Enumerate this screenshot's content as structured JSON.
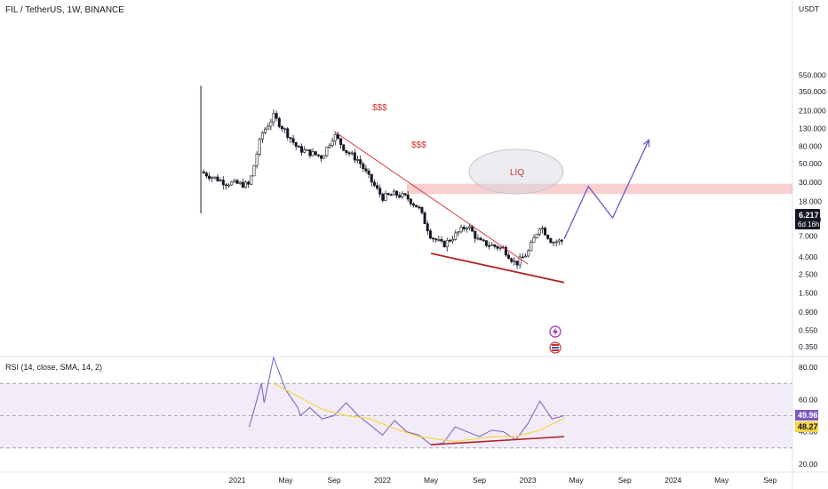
{
  "header": {
    "symbol_line": "FIL / TetherUS, 1W, BINANCE",
    "unit_label": "USDT"
  },
  "chart_data": [
    {
      "type": "candlestick",
      "title": "FIL / TetherUS, 1W, BINANCE",
      "scale": "log",
      "y_unit": "USDT",
      "y_ticks": [
        "550.000",
        "350.000",
        "210.000",
        "130.000",
        "80.000",
        "50.000",
        "30.000",
        "18.000",
        "11.000",
        "7.000",
        "4.000",
        "2.500",
        "1.500",
        "0.900",
        "0.550",
        "0.350"
      ],
      "x_ticks": [
        "2021",
        "May",
        "Sep",
        "2022",
        "May",
        "Sep",
        "2023",
        "May",
        "Sep",
        "2024",
        "May",
        "Sep"
      ],
      "grid": false,
      "approx_weekly_close_path": [
        {
          "x": "2020-10",
          "y": 40
        },
        {
          "x": "2020-12",
          "y": 30
        },
        {
          "x": "2021-02",
          "y": 28
        },
        {
          "x": "2021-03",
          "y": 110
        },
        {
          "x": "2021-04",
          "y": 180
        },
        {
          "x": "2021-05",
          "y": 120
        },
        {
          "x": "2021-06",
          "y": 75
        },
        {
          "x": "2021-08",
          "y": 60
        },
        {
          "x": "2021-09",
          "y": 110
        },
        {
          "x": "2021-10",
          "y": 70
        },
        {
          "x": "2021-11",
          "y": 55
        },
        {
          "x": "2021-12",
          "y": 32
        },
        {
          "x": "2022-01",
          "y": 20
        },
        {
          "x": "2022-02",
          "y": 22
        },
        {
          "x": "2022-03",
          "y": 20
        },
        {
          "x": "2022-04",
          "y": 15
        },
        {
          "x": "2022-05",
          "y": 7
        },
        {
          "x": "2022-06",
          "y": 5.5
        },
        {
          "x": "2022-08",
          "y": 9.5
        },
        {
          "x": "2022-09",
          "y": 6
        },
        {
          "x": "2022-11",
          "y": 5
        },
        {
          "x": "2022-12",
          "y": 3.3
        },
        {
          "x": "2023-01",
          "y": 4.5
        },
        {
          "x": "2023-02",
          "y": 9.5
        },
        {
          "x": "2023-03",
          "y": 6
        },
        {
          "x": "2023-04",
          "y": 6.217
        }
      ],
      "price_label": {
        "value": "6.217",
        "countdown": "6d 16h",
        "color": "#131722"
      },
      "projection_path": [
        {
          "x": "2023-04",
          "y": 6.5
        },
        {
          "x": "2023-06",
          "y": 27
        },
        {
          "x": "2023-08",
          "y": 11.5
        },
        {
          "x": "2023-11",
          "y": 95
        }
      ],
      "liquidity_zone": {
        "low": 22,
        "high": 29,
        "color": "#f4a8a8"
      },
      "annotations": [
        {
          "text": "$$$",
          "color": "#d32f2f"
        },
        {
          "text": "$$$",
          "color": "#d32f2f"
        },
        {
          "text": "LIQ",
          "color": "#d32f2f"
        }
      ],
      "trendlines": [
        {
          "name": "descending resistance",
          "from": {
            "x": "2021-09",
            "y": 120
          },
          "to": {
            "x": "2023-01",
            "y": 3.3
          },
          "color": "#d32f2f"
        },
        {
          "name": "lower trendline",
          "from": {
            "x": "2022-05",
            "y": 4.4
          },
          "to": {
            "x": "2023-04",
            "y": 2.0
          },
          "color": "#b22222"
        }
      ]
    },
    {
      "type": "line",
      "title": "RSI (14, close, SMA, 14, 2)",
      "y_ticks": [
        "80.00",
        "60.00",
        "40.00",
        "20.00"
      ],
      "ylim": [
        18,
        86
      ],
      "band": [
        30,
        70
      ],
      "band_color": "#ede7f6",
      "series": [
        {
          "name": "RSI",
          "color": "#7e57c2",
          "values": [
            {
              "x": "2021-02",
              "y": 43
            },
            {
              "x": "2021-03",
              "y": 70
            },
            {
              "x": "2021-03",
              "y": 58
            },
            {
              "x": "2021-04",
              "y": 86
            },
            {
              "x": "2021-05",
              "y": 66
            },
            {
              "x": "2021-06",
              "y": 55
            },
            {
              "x": "2021-06",
              "y": 50
            },
            {
              "x": "2021-07",
              "y": 55
            },
            {
              "x": "2021-08",
              "y": 48
            },
            {
              "x": "2021-09",
              "y": 50
            },
            {
              "x": "2021-10",
              "y": 58
            },
            {
              "x": "2021-11",
              "y": 50
            },
            {
              "x": "2021-12",
              "y": 44
            },
            {
              "x": "2022-01",
              "y": 38
            },
            {
              "x": "2022-02",
              "y": 47
            },
            {
              "x": "2022-03",
              "y": 40
            },
            {
              "x": "2022-04",
              "y": 38
            },
            {
              "x": "2022-05",
              "y": 32
            },
            {
              "x": "2022-06",
              "y": 33
            },
            {
              "x": "2022-07",
              "y": 43
            },
            {
              "x": "2022-08",
              "y": 40
            },
            {
              "x": "2022-09",
              "y": 37
            },
            {
              "x": "2022-10",
              "y": 41
            },
            {
              "x": "2022-11",
              "y": 40
            },
            {
              "x": "2022-12",
              "y": 35
            },
            {
              "x": "2023-01",
              "y": 45
            },
            {
              "x": "2023-02",
              "y": 59
            },
            {
              "x": "2023-03",
              "y": 48
            },
            {
              "x": "2023-04",
              "y": 49.96
            }
          ]
        },
        {
          "name": "RSI-based MA",
          "color": "#f5d547",
          "values": [
            {
              "x": "2021-04",
              "y": 70
            },
            {
              "x": "2021-06",
              "y": 62
            },
            {
              "x": "2021-08",
              "y": 54
            },
            {
              "x": "2021-10",
              "y": 50
            },
            {
              "x": "2021-12",
              "y": 48
            },
            {
              "x": "2022-02",
              "y": 42
            },
            {
              "x": "2022-04",
              "y": 37
            },
            {
              "x": "2022-07",
              "y": 34
            },
            {
              "x": "2022-10",
              "y": 37
            },
            {
              "x": "2022-12",
              "y": 37
            },
            {
              "x": "2023-02",
              "y": 41
            },
            {
              "x": "2023-04",
              "y": 48.27
            }
          ]
        }
      ],
      "value_labels": [
        {
          "text": "49.96",
          "color": "#7e57c2"
        },
        {
          "text": "48.27",
          "color": "#f5d547"
        }
      ],
      "trendline": {
        "from": {
          "x": "2022-05",
          "y": 32
        },
        "to": {
          "x": "2023-04",
          "y": 37
        },
        "color": "#b22222"
      }
    }
  ]
}
